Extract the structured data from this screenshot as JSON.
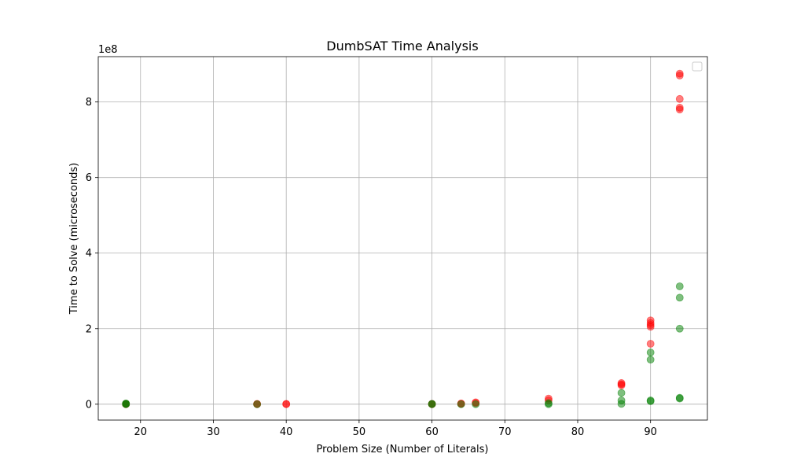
{
  "chart_data": {
    "type": "scatter",
    "title": "DumbSAT Time Analysis",
    "xlabel": "Problem Size (Number of Literals)",
    "ylabel": "Time to Solve (microseconds)",
    "y_offset_label": "1e8",
    "xlim": [
      14.2,
      97.8
    ],
    "ylim": [
      -0.42,
      9.2
    ],
    "y_scale_multiplier": 100000000,
    "x_ticks": [
      20,
      30,
      40,
      50,
      60,
      70,
      80,
      90
    ],
    "x_tick_labels": [
      "20",
      "30",
      "40",
      "50",
      "60",
      "70",
      "80",
      "90"
    ],
    "y_ticks": [
      0,
      2,
      4,
      6,
      8
    ],
    "y_tick_labels": [
      "0",
      "2",
      "4",
      "6",
      "8"
    ],
    "grid": true,
    "legend": "top-right (empty)",
    "series": [
      {
        "color": "#ff0000",
        "alpha": 0.5,
        "points": [
          [
            18,
            0.0
          ],
          [
            18,
            0.01
          ],
          [
            36,
            0.0
          ],
          [
            36,
            0.01
          ],
          [
            40,
            0.0
          ],
          [
            40,
            0.01
          ],
          [
            60,
            0.0
          ],
          [
            60,
            0.01
          ],
          [
            64,
            0.01
          ],
          [
            64,
            0.02
          ],
          [
            66,
            0.03
          ],
          [
            66,
            0.05
          ],
          [
            76,
            0.1
          ],
          [
            76,
            0.15
          ],
          [
            86,
            0.5
          ],
          [
            86,
            0.53
          ],
          [
            86,
            0.56
          ],
          [
            90,
            1.6
          ],
          [
            90,
            2.05
          ],
          [
            90,
            2.1
          ],
          [
            90,
            2.15
          ],
          [
            90,
            2.22
          ],
          [
            94,
            7.8
          ],
          [
            94,
            7.85
          ],
          [
            94,
            8.08
          ],
          [
            94,
            8.7
          ],
          [
            94,
            8.75
          ]
        ]
      },
      {
        "color": "#008000",
        "alpha": 0.5,
        "points": [
          [
            18,
            0.0
          ],
          [
            18,
            0.01
          ],
          [
            18,
            0.02
          ],
          [
            36,
            0.0
          ],
          [
            60,
            0.0
          ],
          [
            60,
            0.01
          ],
          [
            64,
            0.0
          ],
          [
            66,
            0.0
          ],
          [
            76,
            0.0
          ],
          [
            76,
            0.03
          ],
          [
            86,
            0.01
          ],
          [
            86,
            0.1
          ],
          [
            86,
            0.3
          ],
          [
            90,
            0.08
          ],
          [
            90,
            0.1
          ],
          [
            90,
            1.18
          ],
          [
            90,
            1.37
          ],
          [
            94,
            0.15
          ],
          [
            94,
            0.17
          ],
          [
            94,
            2.0
          ],
          [
            94,
            2.82
          ],
          [
            94,
            3.12
          ]
        ]
      }
    ]
  }
}
